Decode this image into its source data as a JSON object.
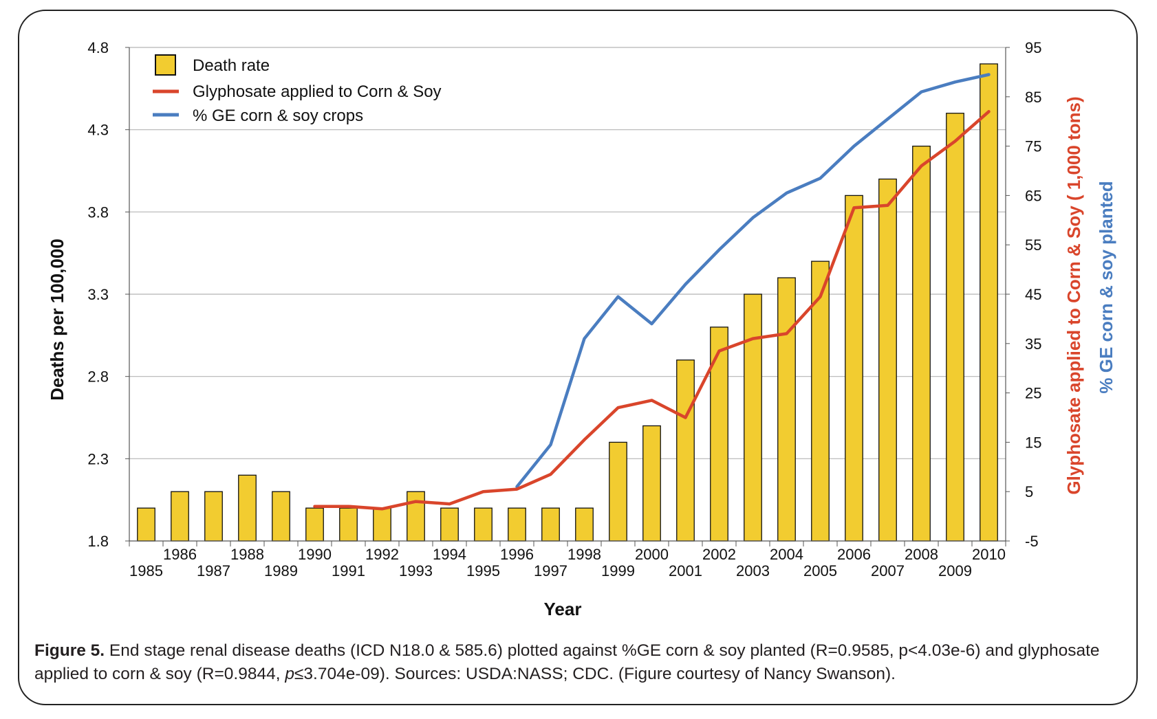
{
  "chart_data": {
    "type": "bar",
    "xlabel": "Year",
    "ylabel": "Deaths per 100,000",
    "y2label_part1": "Glyphosate applied  to Corn & Soy ( 1,000 tons)",
    "y2label_part2": "% GE corn & soy planted",
    "ylim": [
      1.8,
      4.8
    ],
    "y2lim": [
      -5,
      95
    ],
    "yticks": [
      "1.8",
      "2.3",
      "2.8",
      "3.3",
      "3.8",
      "4.3",
      "4.8"
    ],
    "y2ticks": [
      "-5",
      "5",
      "15",
      "25",
      "35",
      "45",
      "55",
      "65",
      "75",
      "85",
      "95"
    ],
    "grid": true,
    "legend_position": "top-left",
    "categories": [
      "1985",
      "1986",
      "1987",
      "1988",
      "1989",
      "1990",
      "1991",
      "1992",
      "1993",
      "1994",
      "1995",
      "1996",
      "1997",
      "1998",
      "1999",
      "2000",
      "2001",
      "2002",
      "2003",
      "2004",
      "2005",
      "2006",
      "2007",
      "2008",
      "2009",
      "2010"
    ],
    "series": [
      {
        "name": "Death rate",
        "type": "bar",
        "axis": "left",
        "color": "#f2cc30",
        "values": [
          2.0,
          2.1,
          2.1,
          2.2,
          2.1,
          2.0,
          2.0,
          2.0,
          2.1,
          2.0,
          2.0,
          2.0,
          2.0,
          2.0,
          2.4,
          2.5,
          2.9,
          3.1,
          3.3,
          3.4,
          3.5,
          3.9,
          4.0,
          4.2,
          4.4,
          4.7
        ]
      },
      {
        "name": "Glyphosate applied to Corn & Soy",
        "type": "line",
        "axis": "right",
        "color": "#d9452b",
        "x": [
          "1990",
          "1991",
          "1992",
          "1993",
          "1994",
          "1995",
          "1996",
          "1997",
          "1998",
          "1999",
          "2000",
          "2001",
          "2002",
          "2003",
          "2004",
          "2005",
          "2006",
          "2007",
          "2008",
          "2009",
          "2010"
        ],
        "values": [
          2,
          2,
          1.5,
          3,
          2.5,
          5,
          5.5,
          8.5,
          15.5,
          22,
          23.5,
          20,
          33.5,
          36,
          37,
          44.5,
          62.5,
          63,
          71,
          76,
          82
        ]
      },
      {
        "name": "% GE corn & soy crops",
        "type": "line",
        "axis": "right",
        "color": "#4a7dc0",
        "x": [
          "1996",
          "1997",
          "1998",
          "1999",
          "2000",
          "2001",
          "2002",
          "2003",
          "2004",
          "2005",
          "2006",
          "2007",
          "2008",
          "2009",
          "2010"
        ],
        "values": [
          6,
          14.5,
          36,
          44.5,
          39,
          47,
          54,
          60.5,
          65.5,
          68.5,
          75,
          80.5,
          86,
          88,
          89.5
        ]
      }
    ]
  },
  "caption": {
    "label": "Figure 5.",
    "text1": " End stage renal disease deaths (ICD N18.0 & 585.6) plotted against %GE corn & soy planted (R=0.9585, p<4.03e-6) and glyphosate applied to corn & soy (R=0.9844, ",
    "p_symbol": "p",
    "text2": "≤3.704e-09). Sources: USDA:NASS; CDC. (Figure courtesy of Nancy Swanson)."
  }
}
